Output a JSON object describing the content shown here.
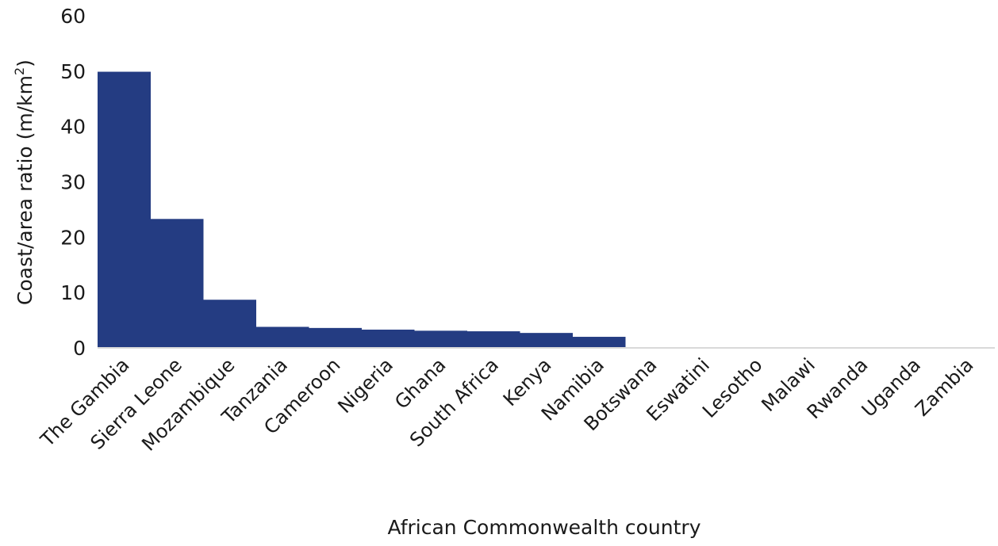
{
  "chart_data": {
    "type": "bar",
    "title": "",
    "xlabel": "African Commonwealth country",
    "ylabel": "Coast/area ratio (m/km",
    "ylabel_superscript": "2",
    "ylabel_suffix": ")",
    "ylim": [
      0,
      60
    ],
    "yticks": [
      0,
      10,
      20,
      30,
      40,
      50,
      60
    ],
    "grid": false,
    "bar_color": "#243c82",
    "categories": [
      "The Gambia",
      "Sierra Leone",
      "Mozambique",
      "Tanzania",
      "Cameroon",
      "Nigeria",
      "Ghana",
      "South Africa",
      "Kenya",
      "Namibia",
      "Botswana",
      "Eswatini",
      "Lesotho",
      "Malawi",
      "Rwanda",
      "Uganda",
      "Zambia"
    ],
    "values": [
      49.9,
      23.3,
      8.7,
      3.8,
      3.6,
      3.3,
      3.1,
      3.0,
      2.7,
      2.0,
      0,
      0,
      0,
      0,
      0,
      0,
      0
    ]
  }
}
